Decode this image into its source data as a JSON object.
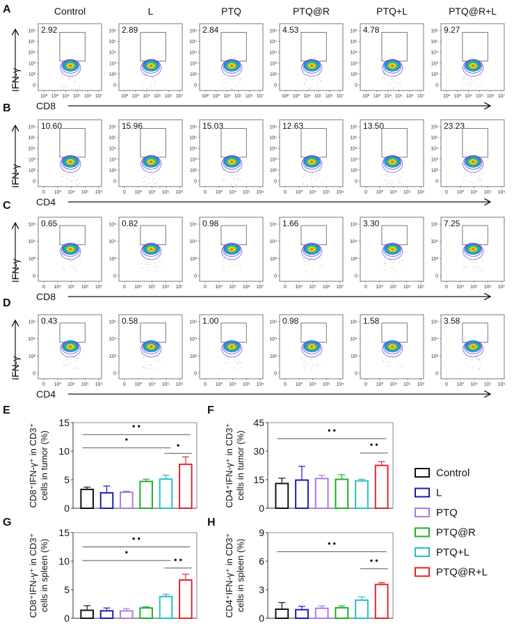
{
  "groups": [
    "Control",
    "L",
    "PTQ",
    "PTQ@R",
    "PTQ+L",
    "PTQ@R+L"
  ],
  "colors": {
    "Control": "#111111",
    "L": "#1a1ab8",
    "PTQ": "#a77be6",
    "PTQ@R": "#1fae2a",
    "PTQ+L": "#23c0c8",
    "PTQ@R+L": "#e0242a"
  },
  "flow_panels": [
    {
      "letter": "A",
      "y_label": "IFN-γ",
      "x_label": "CD8",
      "y_ticks": [
        "10⁶",
        "10⁵",
        "10⁴",
        "10³",
        "10²",
        "0"
      ],
      "x_ticks": [
        "10²",
        "10³",
        "10⁴",
        "10⁵",
        "10⁶",
        "10⁷"
      ],
      "values": [
        "2.92",
        "2.89",
        "2.84",
        "4.53",
        "4.78",
        "9.27"
      ]
    },
    {
      "letter": "B",
      "y_label": "IFN-γ",
      "x_label": "CD4",
      "y_ticks": [
        "10⁶",
        "10⁵",
        "10⁴",
        "10³",
        "10²",
        "0"
      ],
      "x_ticks": [
        "0",
        "10³",
        "10⁴",
        "10⁵",
        "10⁶"
      ],
      "values": [
        "10.60",
        "15.96",
        "15.03",
        "12.63",
        "13.50",
        "23.23"
      ]
    },
    {
      "letter": "C",
      "y_label": "IFN-γ",
      "x_label": "CD8",
      "y_ticks": [
        "10⁶",
        "10⁴",
        "10²",
        "0"
      ],
      "x_ticks": [
        "0",
        "10⁴",
        "10⁵",
        "10⁶",
        "10⁷"
      ],
      "values": [
        "0.65",
        "0.82",
        "0.98",
        "1.66",
        "3.30",
        "7.25"
      ]
    },
    {
      "letter": "D",
      "y_label": "IFN-γ",
      "x_label": "CD4",
      "y_ticks": [
        "10⁶",
        "10⁴",
        "10²",
        "0"
      ],
      "x_ticks": [
        "0",
        "10³",
        "10⁴",
        "10⁵",
        "10⁶"
      ],
      "values": [
        "0.43",
        "0.58",
        "1.00",
        "0.98",
        "1.58",
        "3.58"
      ]
    }
  ],
  "chart_data": [
    {
      "panel": "E",
      "type": "bar",
      "categories": [
        "Control",
        "L",
        "PTQ",
        "PTQ@R",
        "PTQ+L",
        "PTQ@R+L"
      ],
      "values": [
        3.3,
        2.7,
        2.8,
        4.7,
        5.1,
        7.7
      ],
      "errors": [
        0.4,
        1.2,
        0.2,
        0.4,
        0.7,
        1.3
      ],
      "ylabel_line1": "CD8⁺IFN-γ⁺ in CD3⁺",
      "ylabel_line2": "cells in tumor (%)",
      "ylim": [
        0,
        15
      ],
      "yticks": [
        0,
        5,
        10,
        15
      ],
      "significance": [
        {
          "from": 0,
          "to": 5,
          "label": "**",
          "level": 12.9
        },
        {
          "from": 0,
          "to": 4,
          "label": "*",
          "level": 10.6
        },
        {
          "from": 4,
          "to": 5,
          "label": "*",
          "level": 9.6
        }
      ]
    },
    {
      "panel": "F",
      "type": "bar",
      "categories": [
        "Control",
        "L",
        "PTQ",
        "PTQ@R",
        "PTQ+L",
        "PTQ@R+L"
      ],
      "values": [
        13.0,
        14.8,
        15.6,
        15.2,
        14.4,
        22.5
      ],
      "errors": [
        2.8,
        7.2,
        1.7,
        2.4,
        0.8,
        2.0
      ],
      "ylabel_line1": "CD4⁺IFN-γ⁺ in CD3⁺",
      "ylabel_line2": "cells in tumor (%)",
      "ylim": [
        0,
        45
      ],
      "yticks": [
        0,
        15,
        30,
        45
      ],
      "significance": [
        {
          "from": 0,
          "to": 5,
          "label": "**",
          "level": 36.6
        },
        {
          "from": 4,
          "to": 5,
          "label": "**",
          "level": 29.0
        }
      ]
    },
    {
      "panel": "G",
      "type": "bar",
      "categories": [
        "Control",
        "L",
        "PTQ",
        "PTQ@R",
        "PTQ+L",
        "PTQ@R+L"
      ],
      "values": [
        1.4,
        1.3,
        1.3,
        1.8,
        3.8,
        6.7
      ],
      "errors": [
        0.8,
        0.5,
        0.4,
        0.2,
        0.4,
        1.0
      ],
      "ylabel_line1": "CD8⁺IFN-γ⁺ in CD3⁺",
      "ylabel_line2": "cells in spleen (%)",
      "ylim": [
        0,
        15
      ],
      "yticks": [
        0,
        5,
        10,
        15
      ],
      "significance": [
        {
          "from": 0,
          "to": 5,
          "label": "**",
          "level": 12.5
        },
        {
          "from": 0,
          "to": 4,
          "label": "*",
          "level": 10.1
        },
        {
          "from": 4,
          "to": 5,
          "label": "**",
          "level": 8.8
        }
      ]
    },
    {
      "panel": "H",
      "type": "bar",
      "categories": [
        "Control",
        "L",
        "PTQ",
        "PTQ@R",
        "PTQ+L",
        "PTQ@R+L"
      ],
      "values": [
        0.95,
        0.9,
        1.05,
        1.1,
        1.9,
        3.55
      ],
      "errors": [
        0.7,
        0.35,
        0.25,
        0.2,
        0.35,
        0.2
      ],
      "ylabel_line1": "CD4⁺IFN-γ⁺ in CD3⁺",
      "ylabel_line2": "cells in spleen (%)",
      "ylim": [
        0,
        9
      ],
      "yticks": [
        0,
        3,
        6,
        9
      ],
      "significance": [
        {
          "from": 0,
          "to": 5,
          "label": "**",
          "level": 7.0
        },
        {
          "from": 4,
          "to": 5,
          "label": "**",
          "level": 5.2
        }
      ]
    }
  ],
  "legend": {
    "placement": "right",
    "items": [
      "Control",
      "L",
      "PTQ",
      "PTQ@R",
      "PTQ+L",
      "PTQ@R+L"
    ]
  }
}
